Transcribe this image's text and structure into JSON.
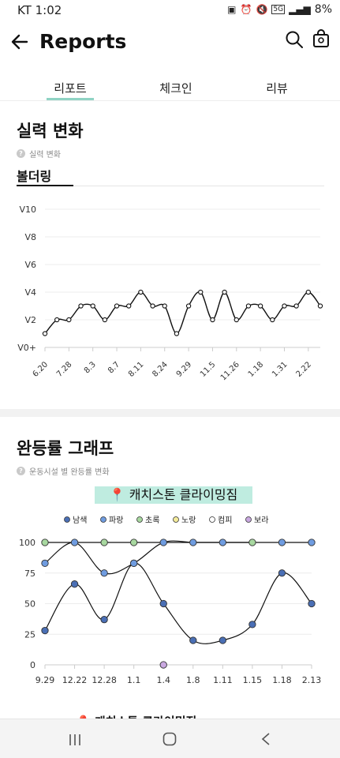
{
  "status_bar": {
    "time": "KT 1:02",
    "battery": "8%",
    "network": "5G"
  },
  "header": {
    "title": "Reports"
  },
  "tabs": [
    {
      "label": "리포트",
      "active": true
    },
    {
      "label": "체크인"
    },
    {
      "label": "리뷰"
    }
  ],
  "skill_section": {
    "title": "실력 변화",
    "subtitle": "실력 변화",
    "category": "볼더링",
    "chart_data": {
      "type": "line",
      "y_ticks": [
        "V10",
        "V8",
        "V6",
        "V4",
        "V2",
        "V0+"
      ],
      "y_range": [
        0,
        10
      ],
      "x_labels": [
        "6.20",
        "7.28",
        "8.3",
        "8.7",
        "8.11",
        "8.24",
        "9.29",
        "11.5",
        "11.26",
        "1.18",
        "1.31",
        "2.22"
      ],
      "values": [
        1,
        2,
        2,
        3,
        3,
        2,
        3,
        3,
        4,
        3,
        3,
        1,
        3,
        4,
        2,
        4,
        2,
        3,
        3,
        2,
        3,
        3,
        4,
        3
      ]
    }
  },
  "completion_section": {
    "title": "완등률 그래프",
    "subtitle": "운동시설 별 완등률 변화",
    "gym_name": "📍 캐치스톤 클라이밍짐",
    "chart_data": {
      "type": "line",
      "legend": [
        {
          "name": "남색",
          "color": "#4a6fb5"
        },
        {
          "name": "파랑",
          "color": "#6f9ce0"
        },
        {
          "name": "초록",
          "color": "#a8d8a0"
        },
        {
          "name": "노랑",
          "color": "#f3ea9a"
        },
        {
          "name": "컴피",
          "color": "#ffffff"
        },
        {
          "name": "보라",
          "color": "#c9a8e0"
        }
      ],
      "y_ticks": [
        "100",
        "75",
        "50",
        "25",
        "0"
      ],
      "y_range": [
        0,
        100
      ],
      "x_labels": [
        "9.29",
        "12.22",
        "12.28",
        "1.1",
        "1.4",
        "1.8",
        "1.11",
        "1.15",
        "1.18",
        "2.13"
      ],
      "series": [
        {
          "name": "남색",
          "values": [
            28,
            66,
            37,
            83,
            50,
            20,
            20,
            33,
            75,
            50
          ]
        },
        {
          "name": "파랑",
          "values": [
            83,
            100,
            75,
            83,
            100,
            100,
            100,
            null,
            100,
            100
          ]
        },
        {
          "name": "초록",
          "values": [
            100,
            null,
            100,
            100,
            null,
            null,
            null,
            100,
            null,
            null
          ]
        },
        {
          "name": "보라",
          "values": [
            null,
            null,
            null,
            null,
            0,
            null,
            null,
            null,
            null,
            null
          ]
        }
      ]
    },
    "next_gym_name": "📍 캐치스톤 클라이밍짐"
  }
}
